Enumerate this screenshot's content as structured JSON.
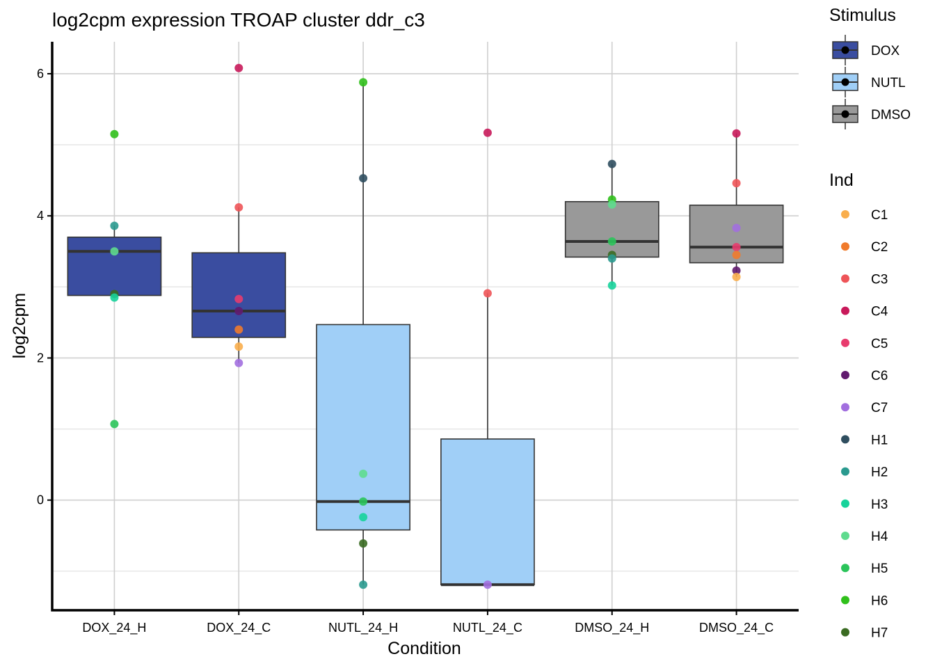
{
  "chart_data": {
    "type": "boxplot",
    "title": "log2cpm expression TROAP cluster ddr_c3",
    "xlabel": "Condition",
    "ylabel": "log2cpm",
    "ylim": [
      -1.55,
      6.45
    ],
    "yticks": [
      0,
      2,
      4,
      6
    ],
    "grid": true,
    "categories": [
      "DOX_24_H",
      "DOX_24_C",
      "NUTL_24_H",
      "NUTL_24_C",
      "DMSO_24_H",
      "DMSO_24_C"
    ],
    "stimulus_of_category": [
      "DOX",
      "DOX",
      "NUTL",
      "NUTL",
      "DMSO",
      "DMSO"
    ],
    "boxes": [
      {
        "q1": 2.88,
        "median": 3.5,
        "q3": 3.7,
        "lower": 2.85,
        "upper": 3.86
      },
      {
        "q1": 2.29,
        "median": 2.66,
        "q3": 3.48,
        "lower": 1.93,
        "upper": 4.12
      },
      {
        "q1": -0.42,
        "median": -0.02,
        "q3": 2.47,
        "lower": -1.19,
        "upper": 5.88
      },
      {
        "q1": -1.19,
        "median": -1.19,
        "q3": 0.86,
        "lower": -1.19,
        "upper": 2.91
      },
      {
        "q1": 3.42,
        "median": 3.64,
        "q3": 4.2,
        "lower": 3.02,
        "upper": 4.73
      },
      {
        "q1": 3.34,
        "median": 3.56,
        "q3": 4.15,
        "lower": 3.14,
        "upper": 5.16
      }
    ],
    "points": [
      {
        "x": "DOX_24_H",
        "y": 5.15,
        "ind": "H6"
      },
      {
        "x": "DOX_24_H",
        "y": 3.86,
        "ind": "H2"
      },
      {
        "x": "DOX_24_H",
        "y": 3.5,
        "ind": "H4"
      },
      {
        "x": "DOX_24_H",
        "y": 2.9,
        "ind": "H7"
      },
      {
        "x": "DOX_24_H",
        "y": 2.85,
        "ind": "H3"
      },
      {
        "x": "DOX_24_H",
        "y": 1.07,
        "ind": "H5"
      },
      {
        "x": "DOX_24_C",
        "y": 6.08,
        "ind": "C4"
      },
      {
        "x": "DOX_24_C",
        "y": 4.12,
        "ind": "C3"
      },
      {
        "x": "DOX_24_C",
        "y": 2.83,
        "ind": "C5"
      },
      {
        "x": "DOX_24_C",
        "y": 2.66,
        "ind": "C6"
      },
      {
        "x": "DOX_24_C",
        "y": 2.4,
        "ind": "C2"
      },
      {
        "x": "DOX_24_C",
        "y": 2.16,
        "ind": "C1"
      },
      {
        "x": "DOX_24_C",
        "y": 1.93,
        "ind": "C7"
      },
      {
        "x": "NUTL_24_H",
        "y": 5.88,
        "ind": "H6"
      },
      {
        "x": "NUTL_24_H",
        "y": 4.53,
        "ind": "H1"
      },
      {
        "x": "NUTL_24_H",
        "y": 0.37,
        "ind": "H4"
      },
      {
        "x": "NUTL_24_H",
        "y": -0.02,
        "ind": "H5"
      },
      {
        "x": "NUTL_24_H",
        "y": -0.24,
        "ind": "H3"
      },
      {
        "x": "NUTL_24_H",
        "y": -0.61,
        "ind": "H7"
      },
      {
        "x": "NUTL_24_H",
        "y": -1.19,
        "ind": "H2"
      },
      {
        "x": "NUTL_24_C",
        "y": 5.17,
        "ind": "C4"
      },
      {
        "x": "NUTL_24_C",
        "y": 2.91,
        "ind": "C3"
      },
      {
        "x": "NUTL_24_C",
        "y": -1.19,
        "ind": "C7"
      },
      {
        "x": "DMSO_24_H",
        "y": 4.73,
        "ind": "H1"
      },
      {
        "x": "DMSO_24_H",
        "y": 4.23,
        "ind": "H6"
      },
      {
        "x": "DMSO_24_H",
        "y": 4.16,
        "ind": "H4"
      },
      {
        "x": "DMSO_24_H",
        "y": 3.64,
        "ind": "H5"
      },
      {
        "x": "DMSO_24_H",
        "y": 3.45,
        "ind": "H7"
      },
      {
        "x": "DMSO_24_H",
        "y": 3.4,
        "ind": "H2"
      },
      {
        "x": "DMSO_24_H",
        "y": 3.02,
        "ind": "H3"
      },
      {
        "x": "DMSO_24_C",
        "y": 5.16,
        "ind": "C4"
      },
      {
        "x": "DMSO_24_C",
        "y": 4.46,
        "ind": "C3"
      },
      {
        "x": "DMSO_24_C",
        "y": 3.83,
        "ind": "C7"
      },
      {
        "x": "DMSO_24_C",
        "y": 3.56,
        "ind": "C5"
      },
      {
        "x": "DMSO_24_C",
        "y": 3.45,
        "ind": "C2"
      },
      {
        "x": "DMSO_24_C",
        "y": 3.23,
        "ind": "C6"
      },
      {
        "x": "DMSO_24_C",
        "y": 3.14,
        "ind": "C1"
      }
    ],
    "legend": {
      "stimulus": {
        "title": "Stimulus",
        "entries": [
          {
            "label": "DOX",
            "color": "#3A4DA0"
          },
          {
            "label": "NUTL",
            "color": "#A0CFF7"
          },
          {
            "label": "DMSO",
            "color": "#999999"
          }
        ]
      },
      "ind": {
        "title": "Ind",
        "entries": [
          {
            "label": "C1",
            "color": "#F9AE4D"
          },
          {
            "label": "C2",
            "color": "#F07B2C"
          },
          {
            "label": "C3",
            "color": "#EE5458"
          },
          {
            "label": "C4",
            "color": "#C8195A"
          },
          {
            "label": "C5",
            "color": "#E83C6E"
          },
          {
            "label": "C6",
            "color": "#621B6F"
          },
          {
            "label": "C7",
            "color": "#A26FDF"
          },
          {
            "label": "H1",
            "color": "#2F4E5F"
          },
          {
            "label": "H2",
            "color": "#2A9A8F"
          },
          {
            "label": "H3",
            "color": "#17D39B"
          },
          {
            "label": "H4",
            "color": "#5FDB8E"
          },
          {
            "label": "H5",
            "color": "#2BC45A"
          },
          {
            "label": "H6",
            "color": "#30C01B"
          },
          {
            "label": "H7",
            "color": "#3A6B22"
          }
        ]
      }
    }
  }
}
